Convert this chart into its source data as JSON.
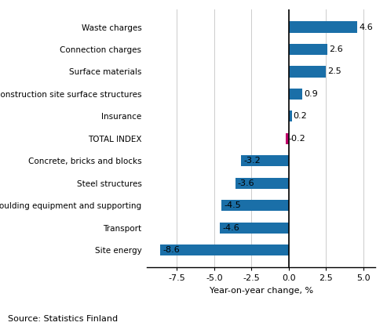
{
  "categories": [
    "Site energy",
    "Transport",
    "Moulding equipment and supporting",
    "Steel structures",
    "Concrete, bricks and blocks",
    "TOTAL INDEX",
    "Insurance",
    "Construction site surface structures",
    "Surface materials",
    "Connection charges",
    "Waste charges"
  ],
  "values": [
    -8.6,
    -4.6,
    -4.5,
    -3.6,
    -3.2,
    -0.2,
    0.2,
    0.9,
    2.5,
    2.6,
    4.6
  ],
  "bar_color": "#1a6fa8",
  "total_index_color": "#c0006a",
  "xlabel": "Year-on-year change, %",
  "source": "Source: Statistics Finland",
  "xlim": [
    -9.5,
    5.8
  ],
  "xticks": [
    -7.5,
    -5.0,
    -2.5,
    0.0,
    2.5,
    5.0
  ],
  "bar_height": 0.5,
  "label_fontsize": 7.5,
  "axis_fontsize": 8.0,
  "source_fontsize": 8.0,
  "value_label_fontsize": 8.0
}
